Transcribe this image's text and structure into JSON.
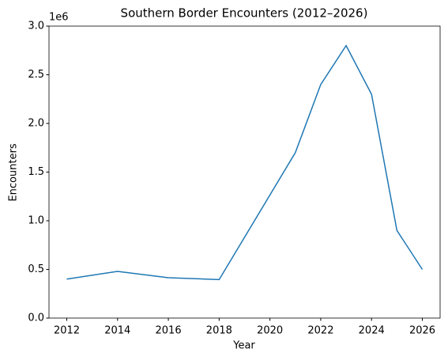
{
  "chart_data": {
    "type": "line",
    "title": "Southern Border Encounters (2012–2026)",
    "x_label": "Year",
    "y_label": "Encounters",
    "y_offset_label": "1e6",
    "x": [
      2012,
      2014,
      2016,
      2018,
      2021,
      2022,
      2023,
      2024,
      2025,
      2026
    ],
    "series": [
      {
        "name": "Encounters",
        "color": "#1f77b4",
        "values": [
          400000,
          480000,
          415000,
          395000,
          1700000,
          2400000,
          2800000,
          2300000,
          900000,
          500000
        ]
      }
    ],
    "xlim": [
      2011.3,
      2026.7
    ],
    "xticks": [
      2012,
      2014,
      2016,
      2018,
      2020,
      2022,
      2024,
      2026
    ],
    "ylim": [
      0,
      3000000
    ],
    "yticks": [
      {
        "value": 0,
        "label": "0.0"
      },
      {
        "value": 500000,
        "label": "0.5"
      },
      {
        "value": 1000000,
        "label": "1.0"
      },
      {
        "value": 1500000,
        "label": "1.5"
      },
      {
        "value": 2000000,
        "label": "2.0"
      },
      {
        "value": 2500000,
        "label": "2.5"
      },
      {
        "value": 3000000,
        "label": "3.0"
      }
    ],
    "grid": false
  }
}
